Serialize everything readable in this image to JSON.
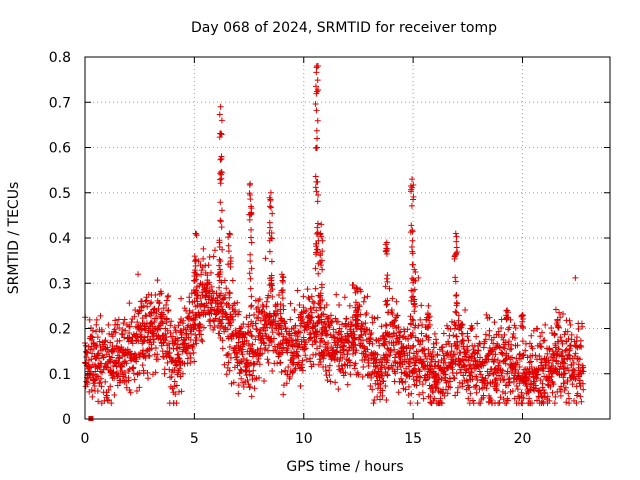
{
  "chart_data": {
    "type": "scatter",
    "title": "Day 068 of 2024, SRMTID for receiver tomp",
    "xlabel": "GPS time / hours",
    "ylabel": "SRMTID / TECUs",
    "xlim": [
      0,
      24
    ],
    "ylim": [
      0,
      0.8
    ],
    "xticks": [
      0,
      5,
      10,
      15,
      20
    ],
    "xtick_labels": [
      "0",
      "5",
      "10",
      "15",
      "20"
    ],
    "yticks": [
      0,
      0.1,
      0.2,
      0.3,
      0.4,
      0.5,
      0.6,
      0.7,
      0.8
    ],
    "ytick_labels": [
      "0",
      "0.1",
      "0.2",
      "0.3",
      "0.4",
      "0.5",
      "0.6",
      "0.7",
      "0.8"
    ],
    "grid": true,
    "marker": "+",
    "color": "#e00000",
    "outlier_marker": {
      "x": 0.27,
      "y": 0.0,
      "shape": "square"
    },
    "baseline": [
      [
        0.0,
        0.12
      ],
      [
        1.0,
        0.12
      ],
      [
        2.0,
        0.15
      ],
      [
        3.0,
        0.19
      ],
      [
        3.5,
        0.2
      ],
      [
        4.0,
        0.13
      ],
      [
        4.5,
        0.16
      ],
      [
        5.0,
        0.22
      ],
      [
        5.5,
        0.28
      ],
      [
        6.0,
        0.26
      ],
      [
        6.5,
        0.2
      ],
      [
        7.0,
        0.15
      ],
      [
        7.5,
        0.13
      ],
      [
        8.0,
        0.2
      ],
      [
        8.5,
        0.22
      ],
      [
        9.0,
        0.17
      ],
      [
        9.5,
        0.14
      ],
      [
        10.0,
        0.2
      ],
      [
        10.5,
        0.2
      ],
      [
        11.0,
        0.17
      ],
      [
        11.5,
        0.17
      ],
      [
        12.0,
        0.16
      ],
      [
        12.5,
        0.2
      ],
      [
        13.0,
        0.15
      ],
      [
        13.5,
        0.12
      ],
      [
        14.0,
        0.17
      ],
      [
        14.5,
        0.12
      ],
      [
        15.0,
        0.13
      ],
      [
        15.5,
        0.12
      ],
      [
        16.0,
        0.09
      ],
      [
        16.5,
        0.1
      ],
      [
        17.0,
        0.15
      ],
      [
        17.5,
        0.12
      ],
      [
        18.0,
        0.12
      ],
      [
        19.0,
        0.12
      ],
      [
        20.0,
        0.1
      ],
      [
        21.0,
        0.1
      ],
      [
        21.5,
        0.14
      ],
      [
        22.0,
        0.13
      ],
      [
        22.5,
        0.11
      ],
      [
        22.8,
        0.1
      ]
    ],
    "spikes": [
      {
        "x": 5.05,
        "peak": 0.41
      },
      {
        "x": 6.2,
        "peak": 0.69
      },
      {
        "x": 6.6,
        "peak": 0.41
      },
      {
        "x": 7.55,
        "peak": 0.52
      },
      {
        "x": 8.5,
        "peak": 0.5
      },
      {
        "x": 9.0,
        "peak": 0.32
      },
      {
        "x": 10.6,
        "peak": 0.78
      },
      {
        "x": 10.8,
        "peak": 0.43
      },
      {
        "x": 12.4,
        "peak": 0.29
      },
      {
        "x": 13.8,
        "peak": 0.39
      },
      {
        "x": 14.95,
        "peak": 0.53
      },
      {
        "x": 15.05,
        "peak": 0.33
      },
      {
        "x": 15.7,
        "peak": 0.25
      },
      {
        "x": 16.95,
        "peak": 0.41
      },
      {
        "x": 17.2,
        "peak": 0.21
      },
      {
        "x": 19.3,
        "peak": 0.24
      },
      {
        "x": 20.0,
        "peak": 0.23
      },
      {
        "x": 21.6,
        "peak": 0.22
      }
    ],
    "series": [
      {
        "name": "SRMTID",
        "x": [],
        "y": []
      }
    ]
  }
}
